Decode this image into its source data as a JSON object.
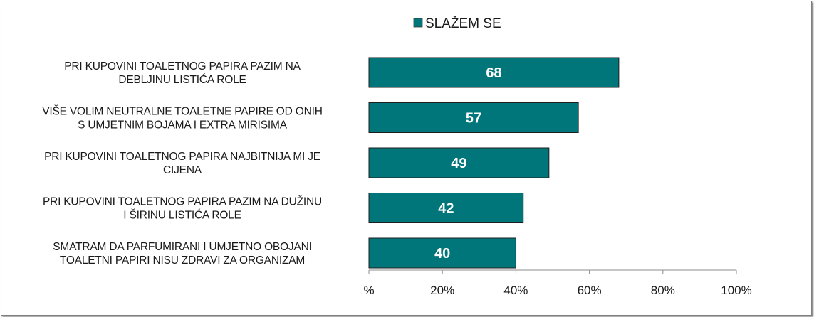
{
  "chart_data": {
    "type": "bar",
    "orientation": "horizontal",
    "categories": [
      [
        "PRI KUPOVINI TOALETNOG PAPIRA PAZIM NA",
        "DEBLJINU LISTIĆA ROLE"
      ],
      [
        "VIŠE VOLIM NEUTRALNE TOALETNE PAPIRE OD ONIH",
        "S UMJETNIM BOJAMA I EXTRA MIRISIMA"
      ],
      [
        "PRI KUPOVINI  TOALETNOG PAPIRA NAJBITNIJA MI JE",
        "CIJENA"
      ],
      [
        "PRI KUPOVINI TOALETNOG PAPIRA PAZIM NA DUŽINU",
        "I ŠIRINU LISTIĆA ROLE"
      ],
      [
        "SMATRAM DA PARFUMIRANI I UMJETNO OBOJANI",
        "TOALETNI PAPIRI NISU ZDRAVI ZA ORGANIZAM"
      ]
    ],
    "series": [
      {
        "name": "SLAŽEM SE",
        "color": "#00757a",
        "values": [
          68,
          57,
          49,
          42,
          40
        ]
      }
    ],
    "xlim": [
      0,
      100
    ],
    "x_ticks": [
      0,
      20,
      40,
      60,
      80,
      100
    ],
    "x_tick_labels": [
      "%",
      "20%",
      "40%",
      "60%",
      "80%",
      "100%"
    ],
    "legend_position": "top",
    "grid": false,
    "data_labels": true
  }
}
